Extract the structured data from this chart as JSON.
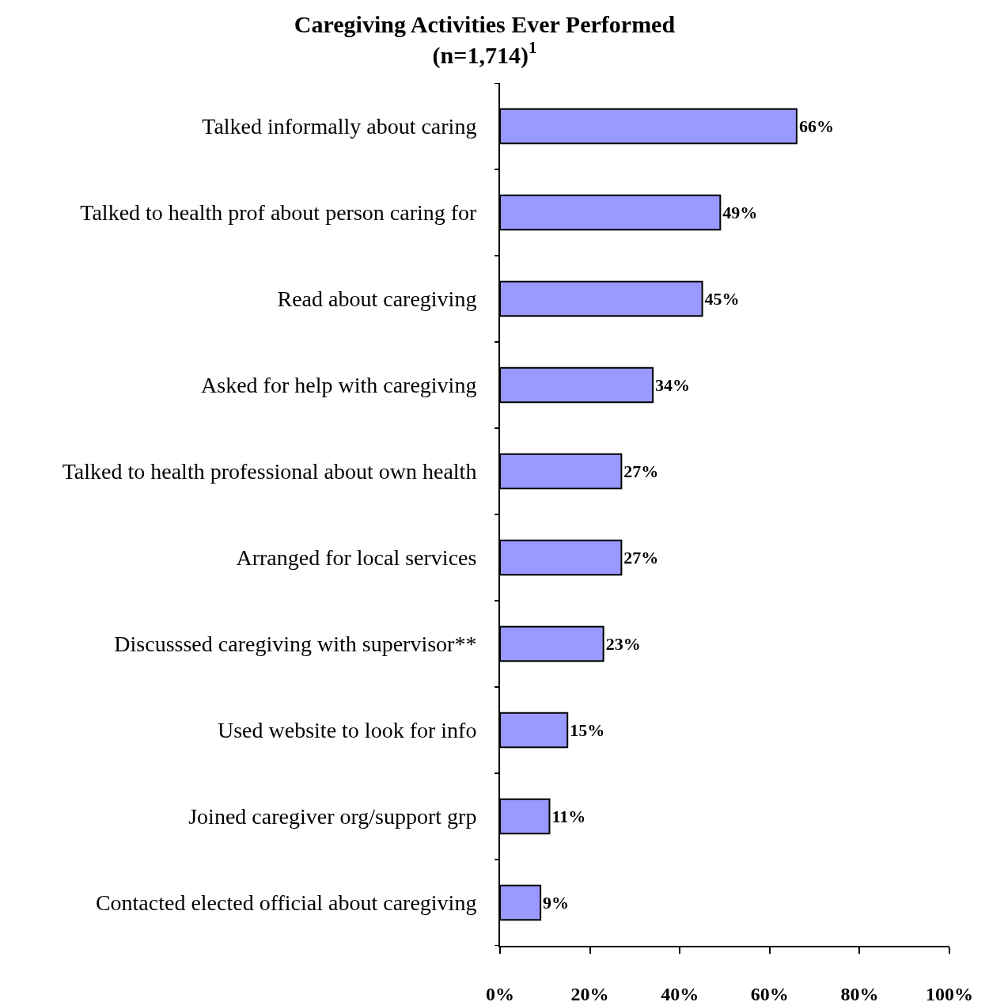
{
  "chart_data": {
    "type": "bar",
    "orientation": "horizontal",
    "title": "Caregiving Activities Ever Performed\n(n=1,714)$^{1}$",
    "categories": [
      "Talked informally about caring",
      "Talked to health prof about person caring for",
      "Read about caregiving",
      "Asked for help with caregiving",
      "Talked to health professional about own health",
      "Arranged for local services",
      "Discusssed caregiving with supervisor**",
      "Used website to look for info",
      "Joined caregiver org/support grp",
      "Contacted elected official about caregiving"
    ],
    "values": [
      66,
      49,
      45,
      34,
      27,
      27,
      23,
      15,
      11,
      9
    ],
    "value_labels": [
      "66%",
      "49%",
      "45%",
      "34%",
      "27%",
      "27%",
      "23%",
      "15%",
      "11%",
      "9%"
    ],
    "color": "#9999ff",
    "xlim": [
      0,
      100
    ],
    "xticks": [
      {
        "value": 0,
        "label": "0%"
      },
      {
        "value": 20,
        "label": "20%"
      },
      {
        "value": 40,
        "label": "40%"
      },
      {
        "value": 60,
        "label": "60%"
      },
      {
        "value": 80,
        "label": "80%"
      },
      {
        "value": 100,
        "label": "100%"
      }
    ],
    "grid": false,
    "legend": false
  }
}
